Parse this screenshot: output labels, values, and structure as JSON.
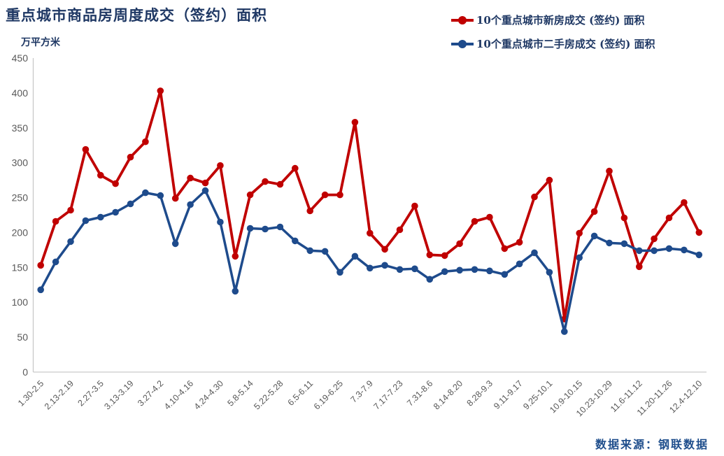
{
  "header": {
    "title": "重点城市商品房周度成交（签约）面积",
    "unit": "万平方米"
  },
  "footer": {
    "source": "数据来源：钢联数据"
  },
  "colors": {
    "title_text": "#1F3864",
    "legend_text": "#1F3864",
    "source_text": "#1F4E8C",
    "axis_text": "#595959",
    "axis_line": "#C9C9C9",
    "new_house_red": "#C00000",
    "second_hand_blue": "#1E4B8C",
    "background": "#FFFFFF"
  },
  "chart_data": {
    "type": "line",
    "title": "重点城市商品房周度成交（签约）面积",
    "ylabel": "万平方米",
    "ylim": [
      0,
      450
    ],
    "ytick_step": 50,
    "grid": false,
    "legend_position": "top-right",
    "x_labels_rotated_degrees": -45,
    "categories": [
      "1.30-2.5",
      "",
      "2.13-2.19",
      "",
      "2.27-3.5",
      "",
      "3.13-3.19",
      "",
      "3.27-4.2",
      "",
      "4.10-4.16",
      "",
      "4.24-4.30",
      "",
      "5.8-5.14",
      "",
      "5.22-5.28",
      "",
      "6.5-6.11",
      "",
      "6.19-6.25",
      "",
      "7.3-7.9",
      "",
      "7.17-7.23",
      "",
      "7.31-8.6",
      "",
      "8.14-8.20",
      "",
      "8.28-9.3",
      "",
      "9.11-9.17",
      "",
      "9.25-10.1",
      "",
      "10.9-10.15",
      "",
      "10.23-10.29",
      "",
      "11.6-11.12",
      "",
      "11.20-11.26",
      "",
      "12.4-12.10"
    ],
    "series": [
      {
        "name": "10个重点城市新房成交 (签约) 面积",
        "color": "#C00000",
        "values": [
          153,
          216,
          232,
          319,
          282,
          270,
          308,
          330,
          403,
          249,
          278,
          271,
          296,
          166,
          254,
          273,
          269,
          292,
          231,
          254,
          254,
          358,
          199,
          176,
          204,
          238,
          168,
          167,
          184,
          216,
          222,
          177,
          186,
          251,
          275,
          76,
          199,
          230,
          288,
          221,
          151,
          191,
          221,
          243,
          200
        ]
      },
      {
        "name": "10个重点城市二手房成交 (签约) 面积",
        "color": "#1E4B8C",
        "values": [
          118,
          158,
          187,
          217,
          222,
          229,
          241,
          257,
          253,
          184,
          240,
          260,
          215,
          116,
          206,
          205,
          208,
          188,
          174,
          173,
          143,
          166,
          149,
          153,
          147,
          148,
          133,
          144,
          146,
          147,
          145,
          140,
          155,
          171,
          143,
          58,
          164,
          195,
          185,
          184,
          174,
          174,
          177,
          175,
          168
        ]
      }
    ]
  }
}
